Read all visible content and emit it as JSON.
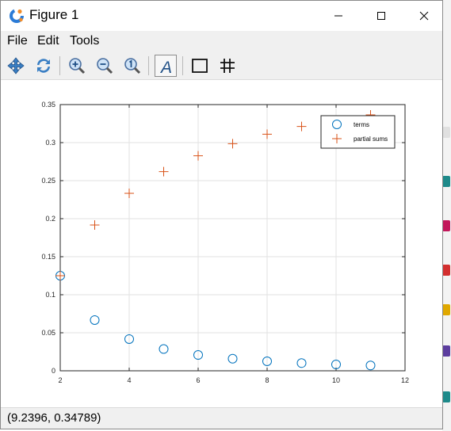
{
  "window": {
    "title": "Figure 1",
    "controls": [
      "minimize",
      "maximize",
      "close"
    ]
  },
  "menu": {
    "items": [
      "File",
      "Edit",
      "Tools"
    ]
  },
  "toolbar": {
    "tools": [
      "pan-icon",
      "rotate-icon",
      "zoom-in-icon",
      "zoom-out-icon",
      "zoom-reset-icon",
      "text-icon",
      "axes-box-icon",
      "grid-icon"
    ]
  },
  "status": {
    "coordinates": "(9.2396, 0.34789)"
  },
  "colors": {
    "terms": "#0072bd",
    "partial_sums": "#d95319"
  },
  "chart_data": {
    "type": "scatter",
    "xlim": [
      2,
      12
    ],
    "ylim": [
      0,
      0.35
    ],
    "xticks": [
      2,
      4,
      6,
      8,
      10,
      12
    ],
    "xtick_labels": [
      "2",
      "4",
      "6",
      "8",
      "10",
      "12"
    ],
    "yticks": [
      0,
      0.05,
      0.1,
      0.15,
      0.2,
      0.25,
      0.3,
      0.35
    ],
    "ytick_labels": [
      "0",
      "0.05",
      "0.1",
      "0.15",
      "0.2",
      "0.25",
      "0.3",
      "0.35"
    ],
    "grid": true,
    "legend_position": "top-right",
    "series": [
      {
        "name": "terms",
        "marker": "circle",
        "x": [
          2,
          3,
          4,
          5,
          6,
          7,
          8,
          9,
          10,
          11
        ],
        "y": [
          0.125,
          0.0667,
          0.0417,
          0.0286,
          0.0208,
          0.0159,
          0.0125,
          0.0101,
          0.0083,
          0.007
        ]
      },
      {
        "name": "partial sums",
        "marker": "plus",
        "x": [
          2,
          3,
          4,
          5,
          6,
          7,
          8,
          9,
          10,
          11
        ],
        "y": [
          0.125,
          0.1917,
          0.2333,
          0.2619,
          0.2827,
          0.2986,
          0.3111,
          0.3212,
          0.3295,
          0.3365
        ]
      }
    ]
  }
}
